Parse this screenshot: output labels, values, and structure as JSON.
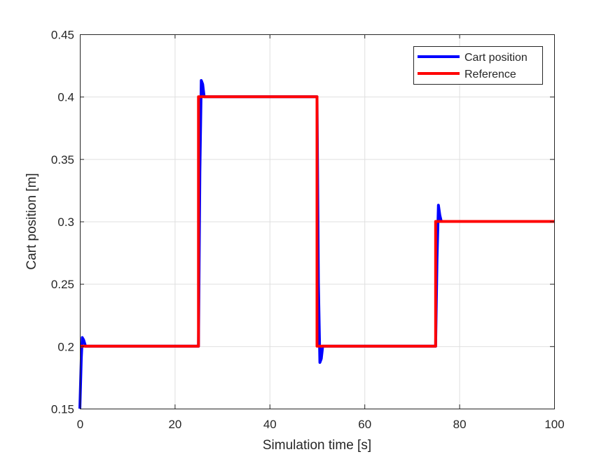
{
  "chart_data": {
    "type": "line",
    "xlabel": "Simulation time [s]",
    "ylabel": "Cart position [m]",
    "xlim": [
      0,
      100
    ],
    "ylim": [
      0.15,
      0.45
    ],
    "xticks": [
      0,
      20,
      40,
      60,
      80,
      100
    ],
    "yticks": [
      0.15,
      0.2,
      0.25,
      0.3,
      0.35,
      0.4,
      0.45
    ],
    "xtick_labels": [
      "0",
      "20",
      "40",
      "60",
      "80",
      "100"
    ],
    "ytick_labels": [
      "0.15",
      "0.2",
      "0.25",
      "0.3",
      "0.35",
      "0.4",
      "0.45"
    ],
    "grid": true,
    "legend_position": "top-right",
    "series": [
      {
        "name": "Cart position",
        "color": "#0000ff",
        "x": [
          0,
          0.3,
          0.5,
          0.8,
          1.2,
          25,
          25.3,
          25.6,
          25.9,
          26.2,
          26.6,
          50,
          50.3,
          50.6,
          50.9,
          51.2,
          51.6,
          75,
          75.3,
          75.6,
          75.9,
          76.2,
          76.6,
          100
        ],
        "y": [
          0.15,
          0.19,
          0.207,
          0.205,
          0.2,
          0.2,
          0.34,
          0.413,
          0.41,
          0.4,
          0.4,
          0.4,
          0.25,
          0.187,
          0.19,
          0.2,
          0.2,
          0.2,
          0.27,
          0.313,
          0.305,
          0.3,
          0.3,
          0.3
        ]
      },
      {
        "name": "Reference",
        "color": "#ff0000",
        "x": [
          0,
          25,
          25,
          50,
          50,
          75,
          75,
          100
        ],
        "y": [
          0.2,
          0.2,
          0.4,
          0.4,
          0.2,
          0.2,
          0.3,
          0.3
        ]
      }
    ]
  }
}
